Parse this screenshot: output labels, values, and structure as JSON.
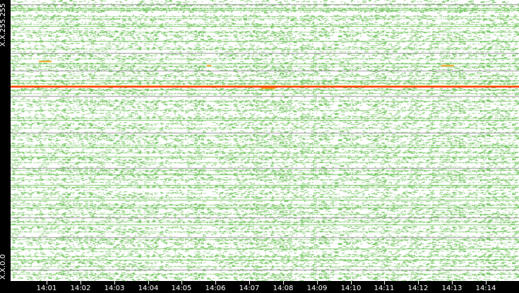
{
  "chart_data": {
    "type": "heatmap",
    "title": "",
    "x_ticks": [
      "14:01",
      "14:02",
      "14:03",
      "14:04",
      "14:05",
      "14:06",
      "14:07",
      "14:08",
      "14:09",
      "14:10",
      "14:11",
      "14:12",
      "14:13",
      "14:14"
    ],
    "y_labels": {
      "top": "X.X.255.255",
      "bottom": "X.X.0.0"
    },
    "colors": {
      "background": "#ffffff",
      "low": "#7cc96a",
      "medium": "#f5a623",
      "high": "#ff2a00",
      "axis": "#000000"
    },
    "grid": false
  }
}
